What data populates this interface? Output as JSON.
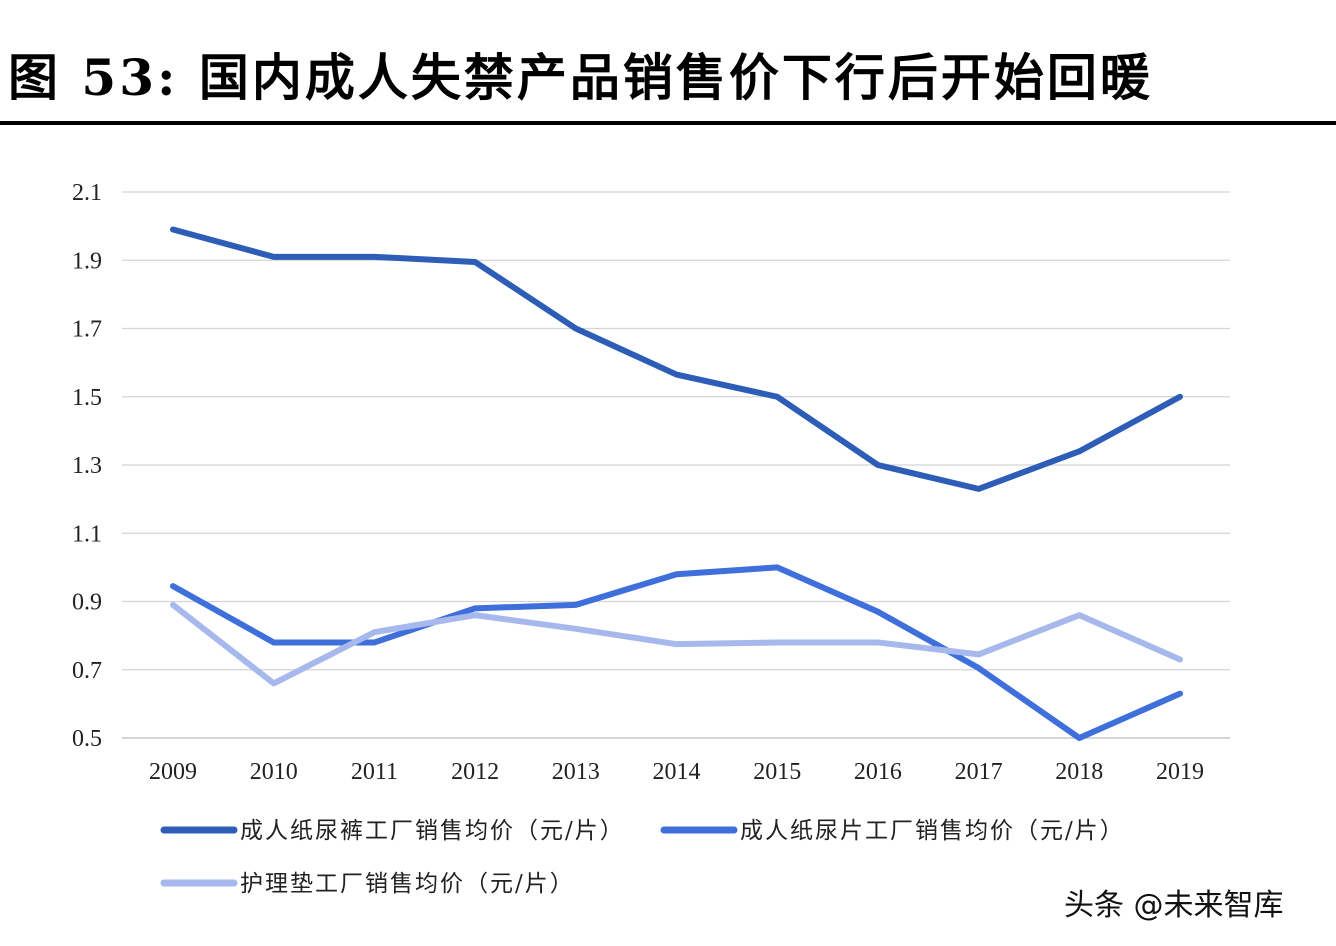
{
  "figure_title": "图  53:  国内成人失禁产品销售价下行后开始回暖",
  "watermark": "头条 @未来智库",
  "chart_data": {
    "type": "line",
    "title": "",
    "xlabel": "",
    "ylabel": "",
    "categories": [
      "2009",
      "2010",
      "2011",
      "2012",
      "2013",
      "2014",
      "2015",
      "2016",
      "2017",
      "2018",
      "2019"
    ],
    "yticks": [
      "2.1",
      "1.9",
      "1.7",
      "1.5",
      "1.3",
      "1.1",
      "0.9",
      "0.7",
      "0.5"
    ],
    "ylim": [
      0.5,
      2.1
    ],
    "grid": true,
    "legend_position": "bottom",
    "series": [
      {
        "name": "成人纸尿裤工厂销售均价（元/片）",
        "color": "#2E5DB8",
        "values": [
          1.99,
          1.91,
          1.91,
          1.895,
          1.7,
          1.565,
          1.5,
          1.3,
          1.23,
          1.34,
          1.5
        ]
      },
      {
        "name": "成人纸尿片工厂销售均价（元/片）",
        "color": "#3F6FDB",
        "values": [
          0.945,
          0.78,
          0.78,
          0.88,
          0.89,
          0.98,
          1.0,
          0.87,
          0.705,
          0.5,
          0.63
        ]
      },
      {
        "name": "护理垫工厂销售均价（元/片）",
        "color": "#A7B8EC",
        "values": [
          0.89,
          0.66,
          0.81,
          0.86,
          0.82,
          0.775,
          0.78,
          0.78,
          0.745,
          0.86,
          0.73
        ]
      }
    ]
  }
}
